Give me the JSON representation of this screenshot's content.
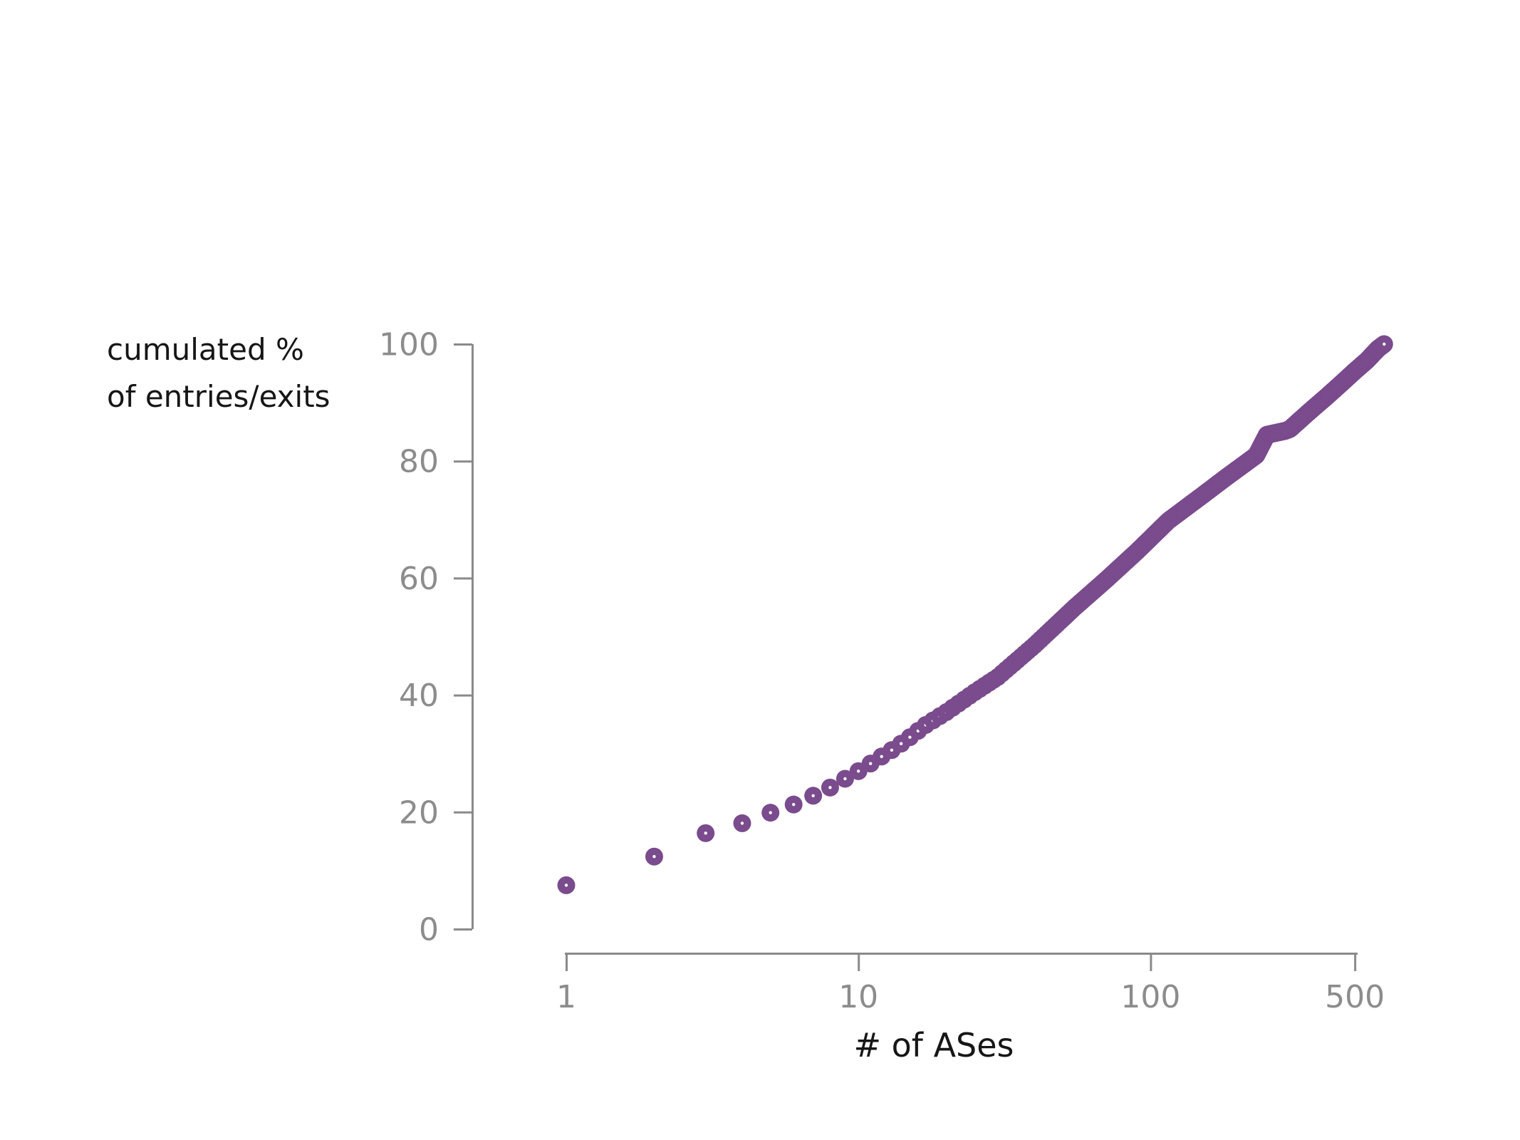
{
  "labels": {
    "y_title_line1": "cumulated %",
    "y_title_line2": "of entries/exits",
    "x_title": "# of ASes"
  },
  "colors": {
    "background": "#ffffff",
    "axis": "#8a8a8a",
    "tick_label": "#8c8c8c",
    "axis_title": "#161616",
    "dot": "#7a4b8d",
    "dot_center": "#ffffff"
  },
  "chart_data": {
    "type": "scatter",
    "title": "",
    "xlabel": "# of ASes",
    "ylabel": "cumulated % of entries/exits",
    "x_scale": "log",
    "xlim": [
      1,
      650
    ],
    "ylim": [
      0,
      100
    ],
    "x_ticks": [
      1,
      10,
      100,
      500
    ],
    "x_tick_labels": [
      "1",
      "10",
      "100",
      "500"
    ],
    "y_ticks": [
      0,
      20,
      40,
      60,
      80,
      100
    ],
    "y_tick_labels": [
      "0",
      "20",
      "40",
      "60",
      "80",
      "100"
    ],
    "grid": false,
    "legend_position": "none",
    "marker": {
      "shape": "circle-with-pinhole",
      "color": "#7a4b8d",
      "center_color": "#ffffff"
    },
    "points": [
      [
        1,
        7.5
      ],
      [
        2,
        12.4
      ],
      [
        3,
        16.4
      ],
      [
        4,
        18.1
      ],
      [
        5,
        19.9
      ],
      [
        6,
        21.3
      ],
      [
        7,
        22.8
      ],
      [
        8,
        24.2
      ],
      [
        9,
        25.7
      ],
      [
        10,
        27.0
      ],
      [
        11,
        28.3
      ],
      [
        12,
        29.5
      ],
      [
        13,
        30.6
      ],
      [
        14,
        31.7
      ],
      [
        15,
        32.8
      ],
      [
        17,
        34.9
      ],
      [
        20,
        37.1
      ],
      [
        25,
        40.5
      ],
      [
        30,
        43.1
      ],
      [
        40,
        48.5
      ],
      [
        55,
        55.0
      ],
      [
        70,
        59.6
      ],
      [
        90,
        64.6
      ],
      [
        115,
        69.8
      ],
      [
        150,
        74.1
      ],
      [
        180,
        77.1
      ],
      [
        230,
        81.0
      ],
      [
        250,
        84.5
      ],
      [
        290,
        85.2
      ],
      [
        300,
        85.5
      ],
      [
        350,
        88.5
      ],
      [
        400,
        91.0
      ],
      [
        450,
        93.3
      ],
      [
        500,
        95.4
      ],
      [
        550,
        97.2
      ],
      [
        600,
        99.2
      ],
      [
        630,
        100.0
      ]
    ]
  }
}
